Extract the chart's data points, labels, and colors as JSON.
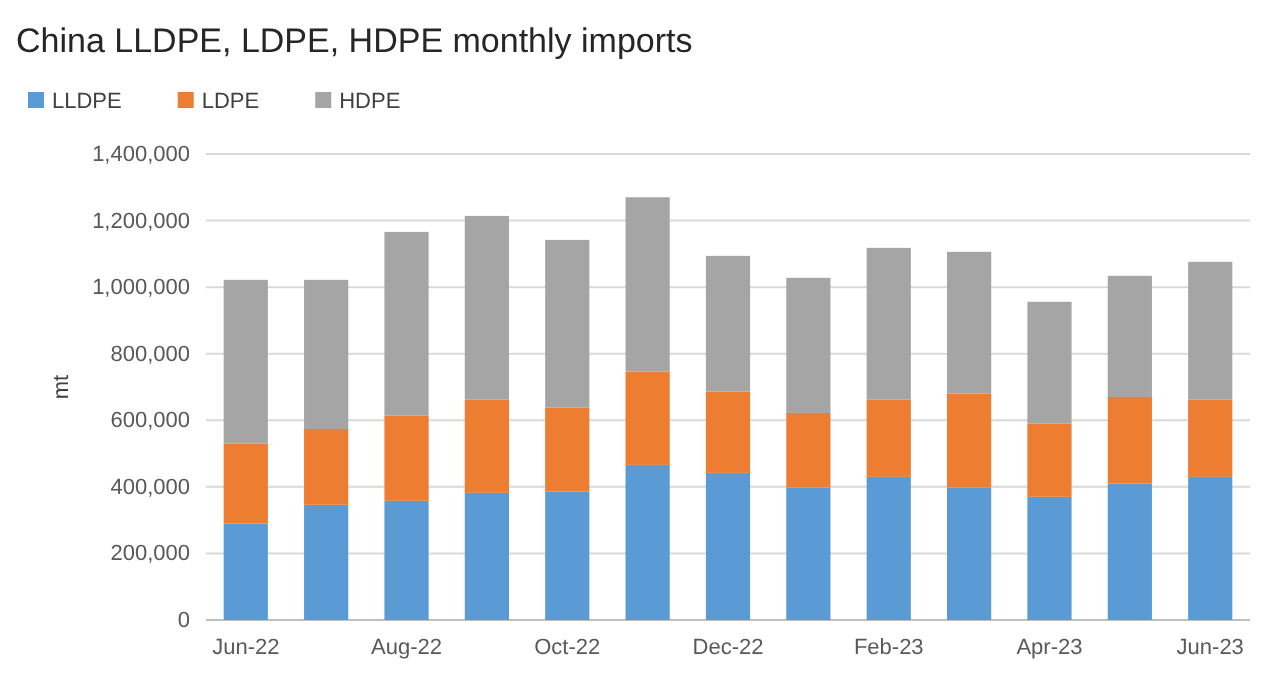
{
  "chart_data": {
    "type": "bar",
    "title": "China LLDPE, LDPE, HDPE monthly imports",
    "ylabel": "mt",
    "stacked": true,
    "categories": [
      "Jun-22",
      null,
      "Aug-22",
      null,
      "Oct-22",
      null,
      "Dec-22",
      null,
      "Feb-23",
      null,
      "Apr-23",
      null,
      "Jun-23"
    ],
    "series": [
      {
        "name": "LLDPE",
        "color": "#5b9bd5",
        "values": [
          290000,
          346000,
          358000,
          382000,
          386000,
          466000,
          442000,
          398000,
          430000,
          398000,
          370000,
          410000,
          430000
        ]
      },
      {
        "name": "LDPE",
        "color": "#ed7d31",
        "values": [
          240000,
          228000,
          256000,
          280000,
          252000,
          280000,
          244000,
          224000,
          232000,
          282000,
          220000,
          260000,
          232000
        ]
      },
      {
        "name": "HDPE",
        "color": "#a5a5a5",
        "values": [
          492000,
          448000,
          552000,
          552000,
          504000,
          524000,
          408000,
          406000,
          456000,
          426000,
          366000,
          364000,
          414000
        ]
      }
    ],
    "ylim": [
      0,
      1400000
    ],
    "yticks": [
      {
        "value": 0,
        "label": "0"
      },
      {
        "value": 200000,
        "label": "200,000"
      },
      {
        "value": 400000,
        "label": "400,000"
      },
      {
        "value": 600000,
        "label": "600,000"
      },
      {
        "value": 800000,
        "label": "800,000"
      },
      {
        "value": 1000000,
        "label": "1,000,000"
      },
      {
        "value": 1200000,
        "label": "1,200,000"
      },
      {
        "value": 1400000,
        "label": "1,400,000"
      }
    ],
    "grid": "y",
    "legend": "top left"
  }
}
